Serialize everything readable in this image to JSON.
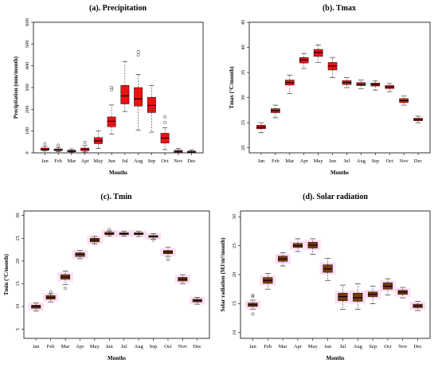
{
  "chart_data": [
    {
      "type": "box",
      "title": "(a). Precipitation",
      "xlabel": "Months",
      "ylabel": "Precipitation (mm/month)",
      "ylim": [
        0,
        600
      ],
      "yticks": [
        0,
        100,
        200,
        300,
        400,
        500,
        600
      ],
      "categories": [
        "Jan",
        "Feb",
        "Mar",
        "Apr",
        "May",
        "Jun",
        "Jul",
        "Aug",
        "Sep",
        "Oct",
        "Nov",
        "Dec"
      ],
      "box_color": "#ee1111",
      "halo_color": "",
      "boxes": [
        {
          "min": 8,
          "q1": 12,
          "median": 16,
          "q3": 22,
          "max": 30,
          "outliers": [
            42
          ]
        },
        {
          "min": 5,
          "q1": 10,
          "median": 14,
          "q3": 18,
          "max": 25,
          "outliers": [
            35
          ]
        },
        {
          "min": 2,
          "q1": 5,
          "median": 8,
          "q3": 12,
          "max": 18,
          "outliers": []
        },
        {
          "min": 4,
          "q1": 10,
          "median": 16,
          "q3": 22,
          "max": 35,
          "outliers": [
            48
          ]
        },
        {
          "min": 20,
          "q1": 42,
          "median": 55,
          "q3": 70,
          "max": 100,
          "outliers": []
        },
        {
          "min": 85,
          "q1": 120,
          "median": 145,
          "q3": 165,
          "max": 220,
          "outliers": [
            290,
            300
          ]
        },
        {
          "min": 190,
          "q1": 225,
          "median": 262,
          "q3": 310,
          "max": 420,
          "outliers": []
        },
        {
          "min": 105,
          "q1": 215,
          "median": 248,
          "q3": 300,
          "max": 360,
          "outliers": [
            450,
            465
          ]
        },
        {
          "min": 95,
          "q1": 185,
          "median": 218,
          "q3": 255,
          "max": 310,
          "outliers": []
        },
        {
          "min": 15,
          "q1": 45,
          "median": 68,
          "q3": 90,
          "max": 115,
          "outliers": [
            140,
            165
          ]
        },
        {
          "min": 0,
          "q1": 3,
          "median": 6,
          "q3": 12,
          "max": 20,
          "outliers": []
        },
        {
          "min": 0,
          "q1": 2,
          "median": 4,
          "q3": 8,
          "max": 14,
          "outliers": []
        }
      ]
    },
    {
      "type": "box",
      "title": "(b). Tmax",
      "xlabel": "Months",
      "ylabel": "Tmax (°C/month)",
      "ylim": [
        19,
        45
      ],
      "yticks": [
        20,
        25,
        30,
        35,
        40,
        45
      ],
      "categories": [
        "Jan",
        "Feb",
        "Mar",
        "Apr",
        "May",
        "Jun",
        "Jul",
        "Aug",
        "Sep",
        "Oct",
        "Nov",
        "Dec"
      ],
      "box_color": "#ee1111",
      "halo_color": "",
      "boxes": [
        {
          "min": 23.0,
          "q1": 23.8,
          "median": 24.1,
          "q3": 24.5,
          "max": 25.0,
          "outliers": []
        },
        {
          "min": 26.0,
          "q1": 27.0,
          "median": 27.4,
          "q3": 27.8,
          "max": 28.5,
          "outliers": []
        },
        {
          "min": 30.8,
          "q1": 32.5,
          "median": 33.0,
          "q3": 33.5,
          "max": 34.5,
          "outliers": []
        },
        {
          "min": 35.8,
          "q1": 36.9,
          "median": 37.5,
          "q3": 38.0,
          "max": 38.8,
          "outliers": []
        },
        {
          "min": 37.0,
          "q1": 38.2,
          "median": 39.0,
          "q3": 39.6,
          "max": 40.5,
          "outliers": []
        },
        {
          "min": 34.0,
          "q1": 35.5,
          "median": 36.3,
          "q3": 37.0,
          "max": 38.0,
          "outliers": []
        },
        {
          "min": 32.0,
          "q1": 32.6,
          "median": 33.0,
          "q3": 33.4,
          "max": 34.0,
          "outliers": []
        },
        {
          "min": 31.8,
          "q1": 32.4,
          "median": 32.6,
          "q3": 33.0,
          "max": 33.5,
          "outliers": []
        },
        {
          "min": 31.5,
          "q1": 32.3,
          "median": 32.6,
          "q3": 32.9,
          "max": 33.3,
          "outliers": []
        },
        {
          "min": 31.2,
          "q1": 31.8,
          "median": 32.1,
          "q3": 32.4,
          "max": 32.8,
          "outliers": []
        },
        {
          "min": 28.5,
          "q1": 29.0,
          "median": 29.4,
          "q3": 29.8,
          "max": 30.3,
          "outliers": []
        },
        {
          "min": 25.0,
          "q1": 25.4,
          "median": 25.6,
          "q3": 25.9,
          "max": 26.3,
          "outliers": []
        }
      ]
    },
    {
      "type": "box",
      "title": "(c). Tmin",
      "xlabel": "Months",
      "ylabel": "Tmin (°C/month)",
      "ylim": [
        3,
        31
      ],
      "yticks": [
        5,
        10,
        15,
        20,
        25,
        30
      ],
      "categories": [
        "Jan",
        "Feb",
        "Mar",
        "Apr",
        "May",
        "Jun",
        "Jul",
        "Aug",
        "Sep",
        "Oct",
        "Nov",
        "Dec"
      ],
      "box_color": "#7a3a0c",
      "halo_color": "#ffd3ee",
      "boxes": [
        {
          "min": 9.0,
          "q1": 9.6,
          "median": 10.0,
          "q3": 10.3,
          "max": 10.8,
          "outliers": []
        },
        {
          "min": 11.0,
          "q1": 11.6,
          "median": 12.0,
          "q3": 12.4,
          "max": 12.8,
          "outliers": [
            13.2
          ]
        },
        {
          "min": 14.8,
          "q1": 16.0,
          "median": 16.5,
          "q3": 17.0,
          "max": 17.8,
          "outliers": [
            14.0
          ]
        },
        {
          "min": 20.5,
          "q1": 21.0,
          "median": 21.5,
          "q3": 21.8,
          "max": 22.3,
          "outliers": []
        },
        {
          "min": 23.8,
          "q1": 24.2,
          "median": 24.6,
          "q3": 25.0,
          "max": 25.4,
          "outliers": []
        },
        {
          "min": 25.5,
          "q1": 25.8,
          "median": 26.0,
          "q3": 26.3,
          "max": 26.6,
          "outliers": [
            26.9
          ]
        },
        {
          "min": 25.5,
          "q1": 25.8,
          "median": 26.0,
          "q3": 26.2,
          "max": 26.5,
          "outliers": []
        },
        {
          "min": 25.4,
          "q1": 25.8,
          "median": 26.0,
          "q3": 26.2,
          "max": 26.5,
          "outliers": []
        },
        {
          "min": 24.8,
          "q1": 25.2,
          "median": 25.4,
          "q3": 25.6,
          "max": 26.0,
          "outliers": [
            24.6
          ]
        },
        {
          "min": 21.0,
          "q1": 21.6,
          "median": 22.0,
          "q3": 22.3,
          "max": 23.0,
          "outliers": [
            20.3
          ]
        },
        {
          "min": 15.0,
          "q1": 15.6,
          "median": 16.0,
          "q3": 16.4,
          "max": 17.0,
          "outliers": []
        },
        {
          "min": 10.5,
          "q1": 11.0,
          "median": 11.3,
          "q3": 11.6,
          "max": 12.0,
          "outliers": []
        }
      ]
    },
    {
      "type": "box",
      "title": "(d). Solar radiation",
      "xlabel": "Months",
      "ylabel": "Solar radiation (MJ/m²/month)",
      "ylim": [
        9,
        31
      ],
      "yticks": [
        10,
        15,
        20,
        25,
        30
      ],
      "categories": [
        "Jan",
        "Feb",
        "Mar",
        "Apr",
        "May",
        "Jun",
        "Jul",
        "Aug",
        "Sep",
        "Oct",
        "Nov",
        "Dec"
      ],
      "box_color": "#7a3a0c",
      "halo_color": "#ffd3ee",
      "boxes": [
        {
          "min": 14.0,
          "q1": 14.5,
          "median": 14.8,
          "q3": 15.1,
          "max": 15.6,
          "outliers": [
            13.2,
            16.2,
            16.4
          ]
        },
        {
          "min": 17.5,
          "q1": 18.5,
          "median": 19.0,
          "q3": 19.5,
          "max": 20.2,
          "outliers": []
        },
        {
          "min": 21.5,
          "q1": 22.3,
          "median": 22.7,
          "q3": 23.2,
          "max": 23.8,
          "outliers": []
        },
        {
          "min": 24.0,
          "q1": 24.7,
          "median": 25.0,
          "q3": 25.4,
          "max": 26.2,
          "outliers": []
        },
        {
          "min": 23.5,
          "q1": 24.6,
          "median": 25.1,
          "q3": 25.6,
          "max": 26.2,
          "outliers": []
        },
        {
          "min": 19.0,
          "q1": 20.4,
          "median": 21.0,
          "q3": 21.7,
          "max": 22.8,
          "outliers": []
        },
        {
          "min": 14.0,
          "q1": 15.5,
          "median": 16.2,
          "q3": 16.8,
          "max": 18.2,
          "outliers": []
        },
        {
          "min": 14.0,
          "q1": 15.4,
          "median": 16.0,
          "q3": 16.8,
          "max": 18.4,
          "outliers": []
        },
        {
          "min": 15.0,
          "q1": 16.2,
          "median": 16.6,
          "q3": 17.0,
          "max": 18.0,
          "outliers": []
        },
        {
          "min": 16.5,
          "q1": 17.5,
          "median": 18.0,
          "q3": 18.6,
          "max": 19.3,
          "outliers": []
        },
        {
          "min": 16.0,
          "q1": 16.6,
          "median": 17.0,
          "q3": 17.3,
          "max": 17.8,
          "outliers": []
        },
        {
          "min": 13.8,
          "q1": 14.3,
          "median": 14.6,
          "q3": 14.9,
          "max": 15.4,
          "outliers": []
        }
      ]
    }
  ]
}
